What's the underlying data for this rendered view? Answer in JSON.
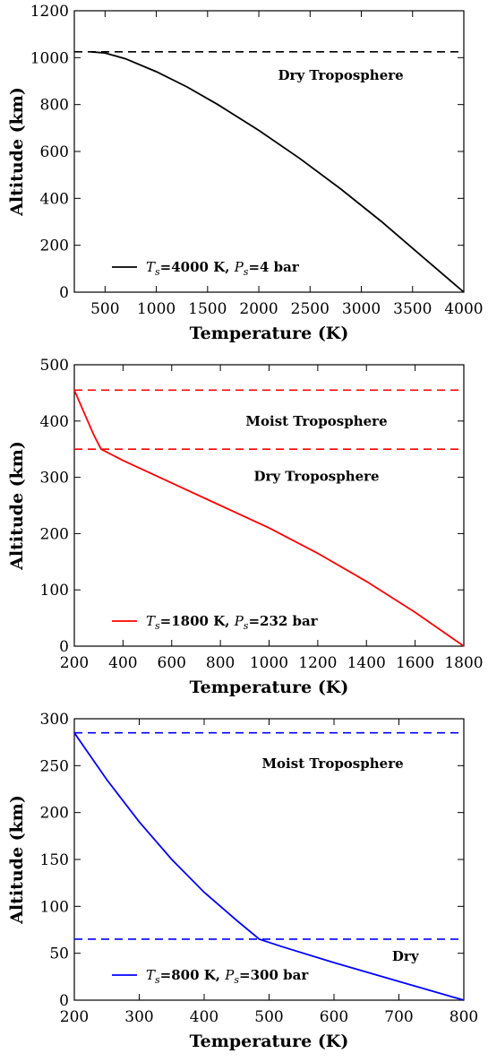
{
  "chart_data": [
    {
      "type": "line",
      "title": "",
      "xlabel": "Temperature (K)",
      "ylabel": "Altitude (km)",
      "xlim": [
        200,
        4000
      ],
      "ylim": [
        0,
        1200
      ],
      "xticks": [
        500,
        1000,
        1500,
        2000,
        2500,
        3000,
        3500,
        4000
      ],
      "yticks": [
        0,
        200,
        400,
        600,
        800,
        1000,
        1200
      ],
      "color": "#000000",
      "legend": {
        "placement": "lower-left",
        "entry": "Ts=4000 K, Ps=4 bar",
        "sym_T": "T",
        "sym_s": "s",
        "mid": "=4000 K, ",
        "sym_P": "P",
        "tail": "=4 bar"
      },
      "series": [
        {
          "x": [
            4000,
            3600,
            3200,
            2800,
            2400,
            2000,
            1600,
            1300,
            1000,
            700,
            500,
            360
          ],
          "y": [
            0,
            150,
            300,
            440,
            570,
            690,
            800,
            875,
            940,
            995,
            1020,
            1025
          ]
        }
      ],
      "hlines": [
        1025
      ],
      "annotations": [
        {
          "text": "Dry Troposphere",
          "x": 2800,
          "y": 925
        }
      ]
    },
    {
      "type": "line",
      "title": "",
      "xlabel": "Temperature (K)",
      "ylabel": "Altitude (km)",
      "xlim": [
        200,
        1800
      ],
      "ylim": [
        0,
        500
      ],
      "xticks": [
        200,
        400,
        600,
        800,
        1000,
        1200,
        1400,
        1600,
        1800
      ],
      "yticks": [
        0,
        100,
        200,
        300,
        400,
        500
      ],
      "color": "#ff0000",
      "legend": {
        "placement": "lower-left",
        "entry": "Ts=1800 K, Ps=232 bar",
        "sym_T": "T",
        "sym_s": "s",
        "mid": "=1800 K, ",
        "sym_P": "P",
        "tail": "=232 bar"
      },
      "series": [
        {
          "x": [
            1800,
            1600,
            1400,
            1200,
            1000,
            800,
            600,
            400,
            310,
            280,
            250,
            220,
            200
          ],
          "y": [
            0,
            60,
            115,
            165,
            210,
            250,
            290,
            330,
            350,
            375,
            405,
            435,
            455
          ]
        }
      ],
      "hlines": [
        350,
        455
      ],
      "annotations": [
        {
          "text": "Moist Troposphere",
          "x": 1195,
          "y": 400
        },
        {
          "text": "Dry Troposphere",
          "x": 1195,
          "y": 302
        }
      ]
    },
    {
      "type": "line",
      "title": "",
      "xlabel": "Temperature (K)",
      "ylabel": "Altitude (km)",
      "xlim": [
        200,
        800
      ],
      "ylim": [
        0,
        300
      ],
      "xticks": [
        200,
        300,
        400,
        500,
        600,
        700,
        800
      ],
      "yticks": [
        0,
        50,
        100,
        150,
        200,
        250,
        300
      ],
      "color": "#0000ff",
      "legend": {
        "placement": "lower-left",
        "entry": "Ts=800 K, Ps=300 bar",
        "sym_T": "T",
        "sym_s": "s",
        "mid": "=800 K, ",
        "sym_P": "P",
        "tail": "=300 bar"
      },
      "series": [
        {
          "x": [
            800,
            700,
            600,
            520,
            485,
            450,
            400,
            350,
            300,
            250,
            220,
            200
          ],
          "y": [
            0,
            20,
            40,
            57,
            65,
            85,
            115,
            150,
            190,
            235,
            265,
            285
          ]
        }
      ],
      "hlines": [
        65,
        285
      ],
      "annotations": [
        {
          "text": "Moist Troposphere",
          "x": 598,
          "y": 252
        },
        {
          "text": "Dry",
          "x": 710,
          "y": 47
        }
      ]
    }
  ]
}
